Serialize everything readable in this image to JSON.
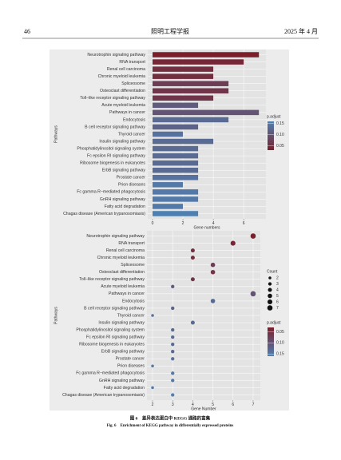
{
  "header": {
    "page": "46",
    "journal": "照明工程学报",
    "date": "2025 年 4 月"
  },
  "chart_data": [
    {
      "type": "bar",
      "y_label": "Pathways",
      "x_label": "Gene numbers",
      "categories": [
        "Neurotrophin signaling pathway",
        "RNA transport",
        "Renal cell carcinoma",
        "Chronic myeloid leukemia",
        "Spliceosome",
        "Osteoclast differentiation",
        "Toll−like receptor signaling pathway",
        "Acute myeloid leukemia",
        "Pathways in cancer",
        "Endocytosis",
        "B cell receptor signaling pathway",
        "Thyroid cancer",
        "Insulin signaling pathway",
        "Phosphatidylinositol signaling system",
        "Fc epsilon RI signaling pathway",
        "Ribosome biogenesis in eukaryotes",
        "ErbB signaling pathway",
        "Prostate cancer",
        "Prion diseases",
        "Fc gamma R−mediated phagocytosis",
        "GnRH signaling pathway",
        "Fatty acid degradation",
        "Chagas disease (American trypanosomiasis)"
      ],
      "values": [
        7,
        6,
        4,
        4,
        5,
        5,
        4,
        3,
        7,
        5,
        3,
        2,
        4,
        3,
        3,
        3,
        3,
        3,
        2,
        3,
        3,
        2,
        3
      ],
      "p_adjust": [
        0.02,
        0.04,
        0.05,
        0.05,
        0.07,
        0.06,
        0.06,
        0.11,
        0.1,
        0.13,
        0.12,
        0.14,
        0.13,
        0.13,
        0.13,
        0.13,
        0.13,
        0.14,
        0.15,
        0.15,
        0.15,
        0.15,
        0.16
      ],
      "xlim": [
        0,
        7.2
      ],
      "xticks": [
        0,
        2,
        4,
        6
      ],
      "colorbar_title": "p.adjust",
      "clim": [
        0.03,
        0.16
      ],
      "colormap": [
        "#7a1f2b",
        "#4f80b2"
      ],
      "cticks": [
        0.05,
        {
          "value": 0.1,
          "label": "0.10"
        },
        0.15
      ],
      "colorbar_reversed": false
    },
    {
      "type": "dot",
      "y_label": "Pathways",
      "x_label": "Gene Number",
      "categories": [
        "Neurotrophin signaling pathway",
        "RNA transport",
        "Renal cell carcinoma",
        "Chronic myeloid leukemia",
        "Spliceosome",
        "Osteoclast differentiation",
        "Toll−like receptor signaling pathway",
        "Acute myeloid leukemia",
        "Pathways in cancer",
        "Endocytosis",
        "B cell receptor signaling pathway",
        "Thyroid cancer",
        "Insulin signaling pathway",
        "Phosphatidylinositol signaling system",
        "Fc epsilon RI signaling pathway",
        "Ribosome biogenesis in eukaryotes",
        "ErbB signaling pathway",
        "Prostate cancer",
        "Prion diseases",
        "Fc gamma R−mediated phagocytosis",
        "GnRH signaling pathway",
        "Fatty acid degradation",
        "Chagas disease (American trypanosomiasis)"
      ],
      "values": [
        7,
        6,
        4,
        4,
        5,
        5,
        4,
        3,
        7,
        5,
        3,
        2,
        4,
        3,
        3,
        3,
        3,
        3,
        2,
        3,
        3,
        2,
        3
      ],
      "p_adjust": [
        0.02,
        0.04,
        0.05,
        0.05,
        0.07,
        0.06,
        0.06,
        0.11,
        0.1,
        0.13,
        0.12,
        0.14,
        0.13,
        0.13,
        0.13,
        0.13,
        0.13,
        0.14,
        0.15,
        0.15,
        0.15,
        0.15,
        0.16
      ],
      "xlim": [
        1.8,
        7.2
      ],
      "xticks": [
        2,
        3,
        4,
        5,
        6,
        7
      ],
      "size_title": "Count",
      "size_legend": [
        2,
        3,
        4,
        5,
        6,
        7
      ],
      "colorbar_title": "p.adjust",
      "clim": [
        0.03,
        0.16
      ],
      "colormap": [
        "#7a1f2b",
        "#4f80b2"
      ],
      "cticks": [
        0.05,
        {
          "value": 0.1,
          "label": "0.10"
        },
        0.15
      ],
      "colorbar_reversed": true
    }
  ],
  "caption": {
    "cn": "图 6　差异表达蛋白中 KEGG 通路的富集",
    "en": "Fig. 6　Enrichment of KEGG pathway in differentially expressed proteins"
  }
}
